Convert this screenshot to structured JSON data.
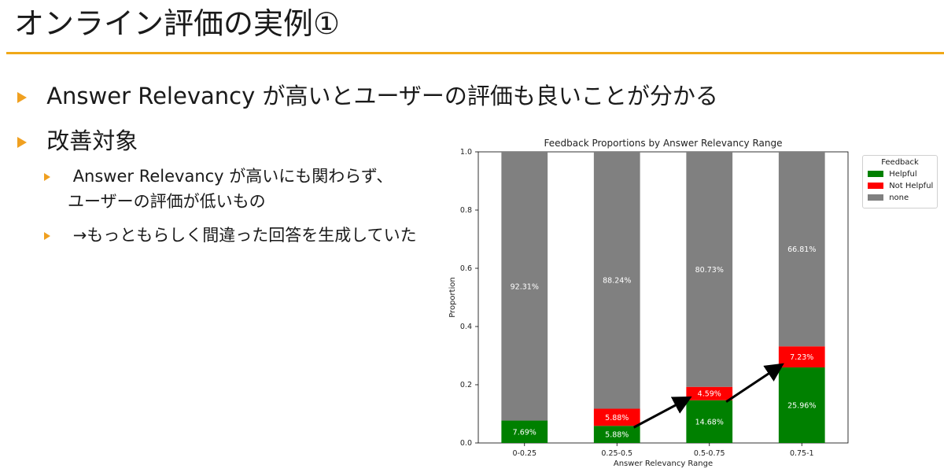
{
  "slide": {
    "title": "オンライン評価の実例①",
    "bullets": [
      "Answer Relevancy が高いとユーザーの評価も良いことが分かる",
      "改善対象"
    ],
    "sub_bullets": [
      [
        "Answer Relevancy が高いにも関わらず、",
        "ユーザーの評価が低いもの"
      ],
      [
        "→もっともらしく間違った回答を生成していた"
      ]
    ],
    "accent_color": "#f0a818"
  },
  "chart_data": {
    "type": "bar",
    "stacked": true,
    "title": "Feedback Proportions by Answer Relevancy Range",
    "xlabel": "Answer Relevancy Range",
    "ylabel": "Proportion",
    "ylim": [
      0,
      1.0
    ],
    "yticks": [
      "0.0",
      "0.2",
      "0.4",
      "0.6",
      "0.8",
      "1.0"
    ],
    "categories": [
      "0-0.25",
      "0.25-0.5",
      "0.5-0.75",
      "0.75-1"
    ],
    "series": [
      {
        "name": "Helpful",
        "color": "#008000",
        "values": [
          0.0769,
          0.0588,
          0.1468,
          0.2596
        ],
        "labels": [
          "7.69%",
          "5.88%",
          "14.68%",
          "25.96%"
        ]
      },
      {
        "name": "Not Helpful",
        "color": "#ff0000",
        "values": [
          0,
          0.0588,
          0.0459,
          0.0723
        ],
        "labels": [
          "",
          "5.88%",
          "4.59%",
          "7.23%"
        ]
      },
      {
        "name": "none",
        "color": "#808080",
        "values": [
          0.9231,
          0.8824,
          0.8073,
          0.6681
        ],
        "labels": [
          "92.31%",
          "88.24%",
          "80.73%",
          "66.81%"
        ]
      }
    ],
    "legend": {
      "title": "Feedback",
      "placement": "right"
    },
    "annotations": "arrows showing increasing Helpful proportion"
  }
}
